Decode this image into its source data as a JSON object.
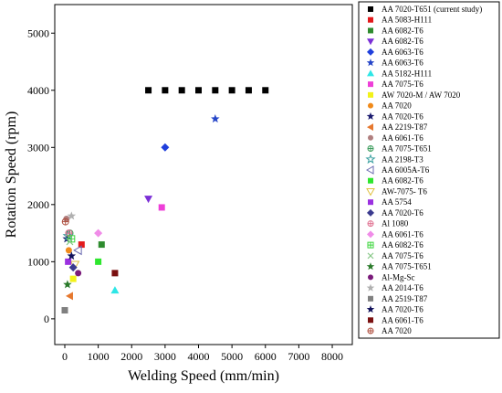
{
  "chart_data": {
    "type": "scatter",
    "xlabel": "Welding Speed (mm/min)",
    "ylabel": "Rotation Speed (rpm)",
    "xlim": [
      -300,
      8600
    ],
    "ylim": [
      -450,
      5500
    ],
    "xticks": [
      0,
      1000,
      2000,
      3000,
      4000,
      5000,
      6000,
      7000,
      8000
    ],
    "xtick_labels": [
      "0",
      "1000",
      "2000",
      "3000",
      "4000",
      "5000",
      "6000",
      "7000",
      "8000"
    ],
    "yticks": [
      0,
      1000,
      2000,
      3000,
      4000,
      5000
    ],
    "ytick_labels": [
      "0",
      "1000",
      "2000",
      "3000",
      "4000",
      "5000"
    ],
    "grid": false,
    "legend_position": "right",
    "series": [
      {
        "name": "AA 7020-T651 (current study)",
        "marker": "square",
        "color": "#000000",
        "points": [
          [
            2500,
            4000
          ],
          [
            3000,
            4000
          ],
          [
            3500,
            4000
          ],
          [
            4000,
            4000
          ],
          [
            4500,
            4000
          ],
          [
            5000,
            4000
          ],
          [
            5500,
            4000
          ],
          [
            6000,
            4000
          ]
        ]
      },
      {
        "name": "AA 5083-H111",
        "marker": "square",
        "color": "#e31a1c",
        "points": [
          [
            500,
            1300
          ]
        ]
      },
      {
        "name": "AA 6082-T6",
        "marker": "square",
        "color": "#2e8b2e",
        "points": [
          [
            1100,
            1300
          ]
        ]
      },
      {
        "name": "AA 6082-T6",
        "marker": "triangle-down",
        "color": "#7b2fd6",
        "points": [
          [
            2500,
            2100
          ]
        ]
      },
      {
        "name": "AA 6063-T6",
        "marker": "diamond",
        "color": "#1f3fdc",
        "points": [
          [
            3000,
            3000
          ]
        ]
      },
      {
        "name": "AA 6063-T6",
        "marker": "star",
        "color": "#2545c8",
        "points": [
          [
            4500,
            3500
          ]
        ]
      },
      {
        "name": "AA 5182-H111",
        "marker": "triangle-up",
        "color": "#2ee6e6",
        "points": [
          [
            1500,
            500
          ]
        ]
      },
      {
        "name": "AA 7075-T6",
        "marker": "square",
        "color": "#ee3fd8",
        "points": [
          [
            2900,
            1950
          ]
        ]
      },
      {
        "name": "AW 7020-M / AW 7020",
        "marker": "square",
        "color": "#f2f21a",
        "points": [
          [
            250,
            700
          ]
        ]
      },
      {
        "name": "AA 7020",
        "marker": "circle",
        "color": "#f08a1a",
        "points": [
          [
            120,
            1200
          ]
        ]
      },
      {
        "name": "AA 7020-T6",
        "marker": "star",
        "color": "#1a1a6e",
        "points": [
          [
            60,
            1400
          ]
        ]
      },
      {
        "name": "AA 2219-T87",
        "marker": "triangle-left",
        "color": "#e6782e",
        "points": [
          [
            150,
            400
          ]
        ]
      },
      {
        "name": "AA 6061-T6",
        "marker": "circle",
        "color": "#b07f7f",
        "points": [
          [
            50,
            1750
          ]
        ]
      },
      {
        "name": "AA 7075-T651",
        "marker": "circle-plus",
        "color": "#3c9c5c",
        "points": [
          [
            150,
            1500
          ]
        ]
      },
      {
        "name": "AA 2198-T3",
        "marker": "star-open",
        "color": "#3aa0a0",
        "points": [
          [
            100,
            1450
          ]
        ]
      },
      {
        "name": "AA 6005A-T6",
        "marker": "triangle-left-open",
        "color": "#6a6ab0",
        "points": [
          [
            400,
            1200
          ]
        ]
      },
      {
        "name": "AA 6082-T6",
        "marker": "square",
        "color": "#2ee62e",
        "points": [
          [
            1000,
            1000
          ]
        ]
      },
      {
        "name": "AW-7075- T6",
        "marker": "triangle-down-open",
        "color": "#e0c040",
        "points": [
          [
            300,
            950
          ]
        ]
      },
      {
        "name": "AA 5754",
        "marker": "square",
        "color": "#9b30e0",
        "points": [
          [
            100,
            1000
          ]
        ]
      },
      {
        "name": "AA 7020-T6",
        "marker": "diamond",
        "color": "#3b3b8f",
        "points": [
          [
            250,
            900
          ]
        ]
      },
      {
        "name": "Al 1080",
        "marker": "circle-plus",
        "color": "#e07090",
        "points": [
          [
            120,
            1500
          ]
        ]
      },
      {
        "name": "AA 6061-T6",
        "marker": "diamond",
        "color": "#f08ce8",
        "points": [
          [
            1000,
            1500
          ]
        ]
      },
      {
        "name": "AA 6082-T6",
        "marker": "square-plus",
        "color": "#3ad43a",
        "points": [
          [
            200,
            1400
          ]
        ]
      },
      {
        "name": "AA 7075-T6",
        "marker": "x",
        "color": "#88c888",
        "points": [
          [
            150,
            1350
          ]
        ]
      },
      {
        "name": "AA 7075-T651",
        "marker": "star",
        "color": "#2a7a2a",
        "points": [
          [
            80,
            600
          ]
        ]
      },
      {
        "name": "Al-Mg-Sc",
        "marker": "circle",
        "color": "#7a1a7a",
        "points": [
          [
            400,
            800
          ]
        ]
      },
      {
        "name": "AA 2014-T6",
        "marker": "star",
        "color": "#b0b0b0",
        "points": [
          [
            200,
            1800
          ]
        ]
      },
      {
        "name": "AA 2519-T87",
        "marker": "square",
        "color": "#808080",
        "points": [
          [
            0,
            150
          ]
        ]
      },
      {
        "name": "AA 7020-T6",
        "marker": "star",
        "color": "#10105a",
        "points": [
          [
            200,
            1100
          ]
        ]
      },
      {
        "name": "AA 6061-T6",
        "marker": "square",
        "color": "#7a1010",
        "points": [
          [
            1500,
            800
          ]
        ]
      },
      {
        "name": "AA 7020",
        "marker": "circle-plus",
        "color": "#b05040",
        "points": [
          [
            20,
            1700
          ]
        ]
      }
    ]
  }
}
